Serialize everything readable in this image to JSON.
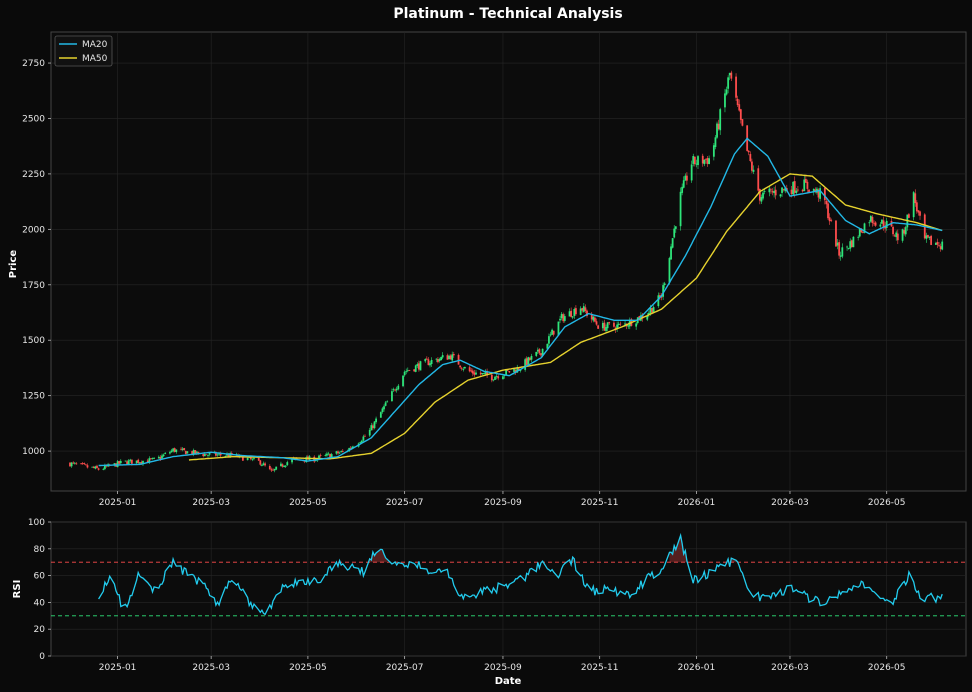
{
  "title": "Platinum - Technical Analysis",
  "chart_data": [
    {
      "type": "candlestick",
      "panel": "price",
      "ylabel": "Price",
      "ylim": [
        820,
        2890
      ],
      "xlim": [
        "2024-11-20",
        "2026-06-20"
      ],
      "yticks": [
        1000,
        1250,
        1500,
        1750,
        2000,
        2250,
        2500,
        2750
      ],
      "xticks": [
        "2025-01",
        "2025-03",
        "2025-05",
        "2025-07",
        "2025-09",
        "2025-11",
        "2026-01",
        "2026-03",
        "2026-05"
      ],
      "grid": true,
      "legend_position": "top-left",
      "up_color": "#2ee57a",
      "down_color": "#ff4d4d",
      "close_anchors": [
        [
          "2024-12-01",
          945
        ],
        [
          "2024-12-20",
          918
        ],
        [
          "2025-01-05",
          950
        ],
        [
          "2025-01-25",
          960
        ],
        [
          "2025-02-05",
          1005
        ],
        [
          "2025-02-25",
          985
        ],
        [
          "2025-03-15",
          980
        ],
        [
          "2025-04-01",
          950
        ],
        [
          "2025-04-08",
          905
        ],
        [
          "2025-04-20",
          960
        ],
        [
          "2025-05-05",
          965
        ],
        [
          "2025-05-25",
          1000
        ],
        [
          "2025-06-08",
          1080
        ],
        [
          "2025-06-20",
          1220
        ],
        [
          "2025-07-01",
          1360
        ],
        [
          "2025-07-15",
          1400
        ],
        [
          "2025-07-30",
          1430
        ],
        [
          "2025-08-10",
          1360
        ],
        [
          "2025-08-25",
          1335
        ],
        [
          "2025-09-10",
          1370
        ],
        [
          "2025-09-25",
          1450
        ],
        [
          "2025-10-08",
          1600
        ],
        [
          "2025-10-20",
          1650
        ],
        [
          "2025-11-01",
          1560
        ],
        [
          "2025-11-15",
          1565
        ],
        [
          "2025-12-01",
          1620
        ],
        [
          "2025-12-10",
          1700
        ],
        [
          "2025-12-22",
          2150
        ],
        [
          "2025-12-29",
          2300
        ],
        [
          "2026-01-10",
          2320
        ],
        [
          "2026-01-22",
          2700
        ],
        [
          "2026-02-02",
          2350
        ],
        [
          "2026-02-10",
          2150
        ],
        [
          "2026-02-25",
          2180
        ],
        [
          "2026-03-10",
          2200
        ],
        [
          "2026-03-22",
          2150
        ],
        [
          "2026-04-01",
          1890
        ],
        [
          "2026-04-10",
          1950
        ],
        [
          "2026-04-20",
          2050
        ],
        [
          "2026-05-01",
          2020
        ],
        [
          "2026-05-10",
          1950
        ],
        [
          "2026-05-18",
          2150
        ],
        [
          "2026-05-25",
          1950
        ],
        [
          "2026-06-05",
          1930
        ]
      ],
      "ma20_anchors": [
        [
          "2024-12-20",
          935
        ],
        [
          "2025-01-15",
          940
        ],
        [
          "2025-02-05",
          975
        ],
        [
          "2025-03-01",
          995
        ],
        [
          "2025-03-20",
          980
        ],
        [
          "2025-04-15",
          970
        ],
        [
          "2025-05-01",
          955
        ],
        [
          "2025-05-20",
          975
        ],
        [
          "2025-06-10",
          1060
        ],
        [
          "2025-06-25",
          1180
        ],
        [
          "2025-07-10",
          1300
        ],
        [
          "2025-07-25",
          1390
        ],
        [
          "2025-08-05",
          1410
        ],
        [
          "2025-08-20",
          1360
        ],
        [
          "2025-09-05",
          1340
        ],
        [
          "2025-09-25",
          1420
        ],
        [
          "2025-10-10",
          1560
        ],
        [
          "2025-10-25",
          1620
        ],
        [
          "2025-11-10",
          1590
        ],
        [
          "2025-11-25",
          1590
        ],
        [
          "2025-12-10",
          1700
        ],
        [
          "2025-12-25",
          1880
        ],
        [
          "2026-01-10",
          2100
        ],
        [
          "2026-01-25",
          2340
        ],
        [
          "2026-02-02",
          2410
        ],
        [
          "2026-02-15",
          2330
        ],
        [
          "2026-03-01",
          2150
        ],
        [
          "2026-03-20",
          2175
        ],
        [
          "2026-04-05",
          2040
        ],
        [
          "2026-04-20",
          1980
        ],
        [
          "2026-05-05",
          2030
        ],
        [
          "2026-05-20",
          2020
        ],
        [
          "2026-06-05",
          1995
        ]
      ],
      "ma50_anchors": [
        [
          "2025-02-15",
          960
        ],
        [
          "2025-03-15",
          975
        ],
        [
          "2025-04-15",
          970
        ],
        [
          "2025-05-15",
          965
        ],
        [
          "2025-06-10",
          990
        ],
        [
          "2025-07-01",
          1080
        ],
        [
          "2025-07-20",
          1220
        ],
        [
          "2025-08-10",
          1320
        ],
        [
          "2025-09-01",
          1365
        ],
        [
          "2025-10-01",
          1400
        ],
        [
          "2025-10-20",
          1490
        ],
        [
          "2025-11-15",
          1560
        ],
        [
          "2025-12-10",
          1640
        ],
        [
          "2026-01-01",
          1780
        ],
        [
          "2026-01-20",
          1990
        ],
        [
          "2026-02-10",
          2170
        ],
        [
          "2026-03-01",
          2250
        ],
        [
          "2026-03-15",
          2240
        ],
        [
          "2026-04-05",
          2110
        ],
        [
          "2026-04-25",
          2070
        ],
        [
          "2026-05-20",
          2030
        ],
        [
          "2026-06-05",
          1995
        ]
      ],
      "series": [
        {
          "name": "MA20",
          "color": "#22b8e6"
        },
        {
          "name": "MA50",
          "color": "#e6d22e"
        }
      ]
    },
    {
      "type": "line",
      "panel": "rsi",
      "ylabel": "RSI",
      "xlabel": "Date",
      "ylim": [
        0,
        100
      ],
      "yticks": [
        0,
        20,
        40,
        60,
        80,
        100
      ],
      "overbought": 70,
      "oversold": 30,
      "overbought_color": "#ff4d4d",
      "oversold_color": "#2ee57a",
      "line_color": "#22ccee",
      "rsi_anchors": [
        [
          "2024-12-20",
          46
        ],
        [
          "2024-12-28",
          58
        ],
        [
          "2025-01-05",
          33
        ],
        [
          "2025-01-15",
          62
        ],
        [
          "2025-01-25",
          48
        ],
        [
          "2025-02-05",
          70
        ],
        [
          "2025-02-15",
          60
        ],
        [
          "2025-02-25",
          52
        ],
        [
          "2025-03-05",
          38
        ],
        [
          "2025-03-15",
          60
        ],
        [
          "2025-03-25",
          40
        ],
        [
          "2025-04-05",
          33
        ],
        [
          "2025-04-15",
          50
        ],
        [
          "2025-04-25",
          55
        ],
        [
          "2025-05-10",
          58
        ],
        [
          "2025-05-20",
          70
        ],
        [
          "2025-06-05",
          63
        ],
        [
          "2025-06-15",
          82
        ],
        [
          "2025-06-25",
          68
        ],
        [
          "2025-07-05",
          70
        ],
        [
          "2025-07-15",
          65
        ],
        [
          "2025-07-28",
          64
        ],
        [
          "2025-08-05",
          42
        ],
        [
          "2025-08-20",
          48
        ],
        [
          "2025-09-01",
          52
        ],
        [
          "2025-09-15",
          58
        ],
        [
          "2025-09-25",
          70
        ],
        [
          "2025-10-05",
          60
        ],
        [
          "2025-10-15",
          72
        ],
        [
          "2025-10-25",
          48
        ],
        [
          "2025-11-05",
          50
        ],
        [
          "2025-11-20",
          45
        ],
        [
          "2025-12-01",
          58
        ],
        [
          "2025-12-10",
          65
        ],
        [
          "2025-12-22",
          87
        ],
        [
          "2025-12-30",
          56
        ],
        [
          "2026-01-10",
          62
        ],
        [
          "2026-01-25",
          72
        ],
        [
          "2026-02-05",
          44
        ],
        [
          "2026-02-20",
          44
        ],
        [
          "2026-03-01",
          52
        ],
        [
          "2026-03-15",
          42
        ],
        [
          "2026-03-25",
          40
        ],
        [
          "2026-04-05",
          48
        ],
        [
          "2026-04-15",
          55
        ],
        [
          "2026-04-25",
          45
        ],
        [
          "2026-05-05",
          40
        ],
        [
          "2026-05-15",
          60
        ],
        [
          "2026-05-22",
          44
        ],
        [
          "2026-06-05",
          43
        ]
      ]
    }
  ]
}
